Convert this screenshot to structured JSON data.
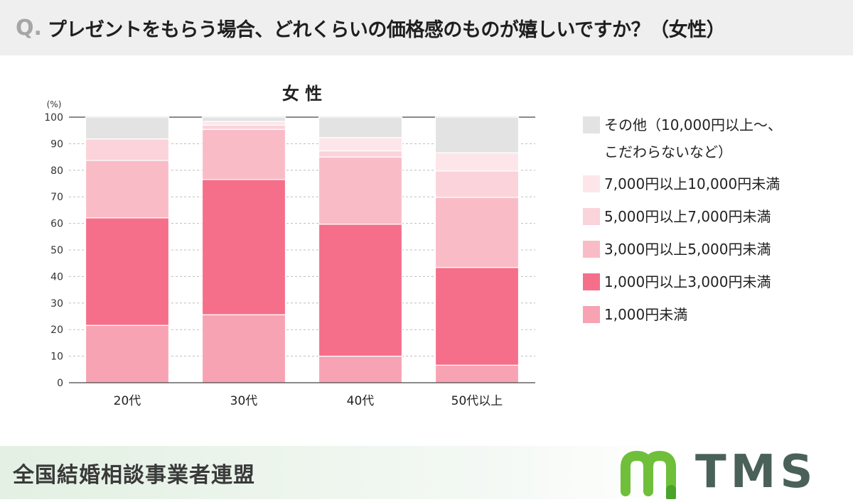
{
  "header": {
    "q_mark": "Q.",
    "question": "プレゼントをもらう場合、どれくらいの価格感のものが嬉しいですか？（女性）"
  },
  "chart_data": {
    "type": "bar",
    "stacked": true,
    "title": "女 性",
    "y_unit": "(%)",
    "ylim": [
      0,
      100
    ],
    "yticks": [
      0,
      10,
      20,
      30,
      40,
      50,
      60,
      70,
      80,
      90,
      100
    ],
    "grid": true,
    "legend_position": "right",
    "categories": [
      "20代",
      "30代",
      "40代",
      "50代以上"
    ],
    "series": [
      {
        "name": "1,000円未満",
        "color": "#f7a3b3",
        "values": [
          21.6,
          25.6,
          10.0,
          6.6
        ]
      },
      {
        "name": "1,000円以上3,000円未満",
        "color": "#f56f8a",
        "values": [
          40.5,
          50.9,
          49.7,
          36.8
        ]
      },
      {
        "name": "3,000円以上5,000円未満",
        "color": "#f9bcc6",
        "values": [
          21.6,
          18.9,
          25.3,
          26.4
        ]
      },
      {
        "name": "5,000円以上7,000円未満",
        "color": "#fbd3da",
        "values": [
          8.1,
          1.6,
          2.3,
          9.9
        ]
      },
      {
        "name": "7,000円以上10,000円未満",
        "color": "#fde6ea",
        "values": [
          0,
          1.4,
          5.0,
          6.9
        ]
      },
      {
        "name": "その他（10,000円以上〜、\nこだわらないなど）",
        "color": "#e3e3e3",
        "values": [
          8.2,
          1.6,
          7.7,
          13.4
        ]
      }
    ]
  },
  "footer": {
    "org": "全国結婚相談事業者連盟",
    "logo_text": "TMS"
  },
  "colors": {
    "logo_green": "#6fbf3a",
    "logo_dark": "#4a615a"
  }
}
